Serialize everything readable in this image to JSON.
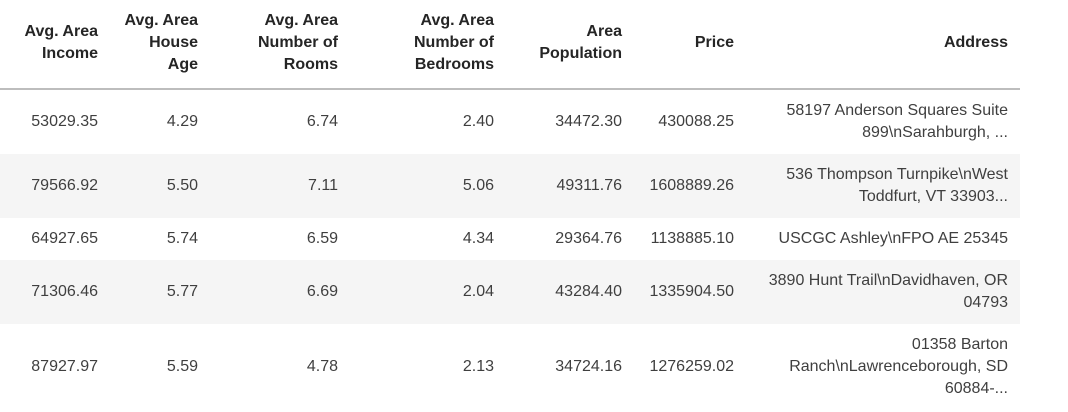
{
  "chart_data": {
    "type": "table",
    "title": "",
    "columns": [
      "Avg. Area\nIncome",
      "Avg. Area\nHouse\nAge",
      "Avg. Area\nNumber of\nRooms",
      "Avg. Area\nNumber of\nBedrooms",
      "Area\nPopulation",
      "Price",
      "Address"
    ],
    "rows": [
      [
        "53029.35",
        "4.29",
        "6.74",
        "2.40",
        "34472.30",
        "430088.25",
        "58197 Anderson Squares Suite 899\\nSarahburgh, ..."
      ],
      [
        "79566.92",
        "5.50",
        "7.11",
        "5.06",
        "49311.76",
        "1608889.26",
        "536 Thompson Turnpike\\nWest Toddfurt, VT 33903..."
      ],
      [
        "64927.65",
        "5.74",
        "6.59",
        "4.34",
        "29364.76",
        "1138885.10",
        "USCGC Ashley\\nFPO AE 25345"
      ],
      [
        "71306.46",
        "5.77",
        "6.69",
        "2.04",
        "43284.40",
        "1335904.50",
        "3890 Hunt Trail\\nDavidhaven, OR 04793"
      ],
      [
        "87927.97",
        "5.59",
        "4.78",
        "2.13",
        "34724.16",
        "1276259.02",
        "01358 Barton Ranch\\nLawrenceborough, SD 60884-..."
      ]
    ],
    "layout": {
      "cell_alignment": "right",
      "zebra_striping": "even rows shaded",
      "grid": "header divider only"
    },
    "colors": {
      "stripe": "#f5f5f5",
      "header_divider": "#bdbdbd",
      "header_text": "#252525",
      "body_text": "#3f3f3f",
      "background": "#ffffff"
    }
  }
}
